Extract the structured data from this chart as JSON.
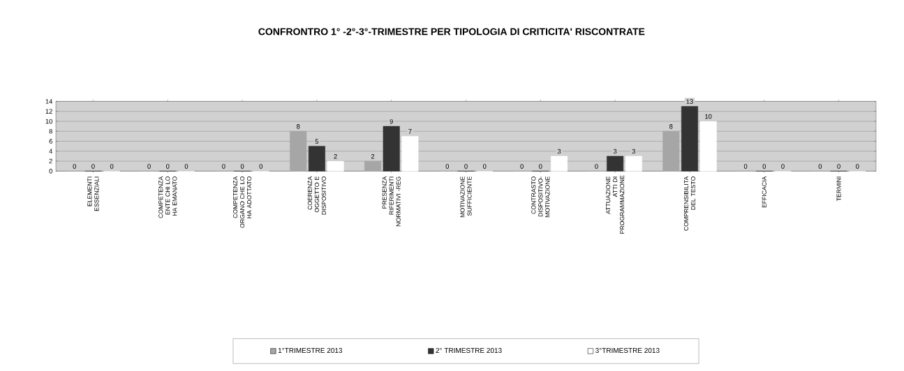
{
  "chart_data": {
    "type": "bar",
    "title": "CONFRONTRO 1° -2°-3°-TRIMESTRE PER TIPOLOGIA DI CRITICITA'  RISCONTRATE",
    "categories": [
      "ELEMENTI ESSENZIALI",
      "COMPETENZA ENTE CHI LO HA EMANATO",
      "COMPETENZA ORGANO CHE LO HA ADOTTATO",
      "COERENZA OGGETTO E DISPOSITIVO",
      "PRESENZA RIFERIMENTI NORMATIVI -REG",
      "MOTIVAZIONE SUFFICIENTE",
      "CONTRASTO DISPOSITIVO-MOTIVAZIONE",
      "ATTUAZIONE ATTI DI PROGRAMMAZIONE",
      "COMPRENSIBILITA DEL TESTO",
      "EFFICACIA",
      "TERMINI"
    ],
    "series": [
      {
        "name": "1°TRIMESTRE 2013",
        "color": "#a6a6a6",
        "values": [
          0,
          0,
          0,
          8,
          2,
          0,
          0,
          0,
          8,
          0,
          0
        ]
      },
      {
        "name": "2° TRIMESTRE 2013",
        "color": "#333333",
        "values": [
          0,
          0,
          0,
          5,
          9,
          0,
          0,
          3,
          13,
          0,
          0
        ]
      },
      {
        "name": "3°TRIMESTRE 2013",
        "color": "#ffffff",
        "values": [
          0,
          0,
          0,
          2,
          7,
          0,
          3,
          3,
          10,
          0,
          0
        ]
      }
    ],
    "ylim": [
      0,
      14
    ],
    "yticks": [
      0,
      2,
      4,
      6,
      8,
      10,
      12,
      14
    ],
    "grid": "y",
    "legend": "bottom",
    "data_labels": true
  }
}
